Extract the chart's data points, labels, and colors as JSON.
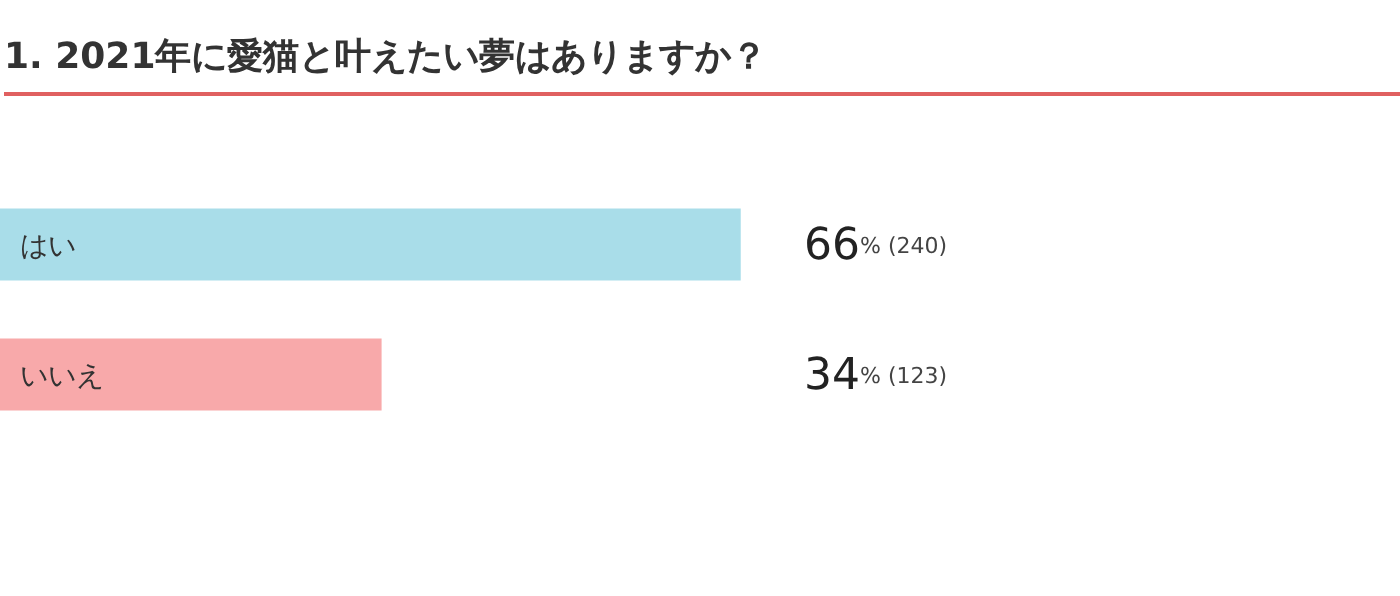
{
  "chart_data": {
    "type": "bar",
    "title": "1. 2021年に愛猫と叶えたい夢はありますか？",
    "orientation": "horizontal",
    "categories": [
      "はい",
      "いいえ"
    ],
    "values": [
      66,
      34
    ],
    "colors": [
      "#a9dde9",
      "#f8a9aa"
    ],
    "value_labels": [
      "66% (240)",
      "34% (123)"
    ]
  }
}
